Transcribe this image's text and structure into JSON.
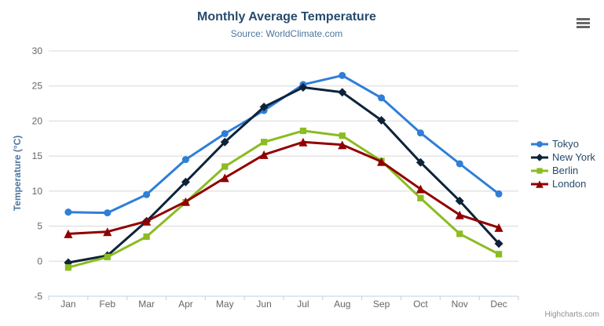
{
  "chart": {
    "title": "Monthly Average Temperature",
    "subtitle": "Source: WorldClimate.com",
    "y_axis_title": "Temperature (°C)",
    "credit": "Highcharts.com"
  },
  "chart_data": {
    "type": "line",
    "title": "Monthly Average Temperature",
    "subtitle": "Source: WorldClimate.com",
    "xlabel": "",
    "ylabel": "Temperature (°C)",
    "ylim": [
      -5,
      30
    ],
    "y_ticks": [
      -5,
      0,
      5,
      10,
      15,
      20,
      25,
      30
    ],
    "grid": true,
    "legend_position": "right",
    "categories": [
      "Jan",
      "Feb",
      "Mar",
      "Apr",
      "May",
      "Jun",
      "Jul",
      "Aug",
      "Sep",
      "Oct",
      "Nov",
      "Dec"
    ],
    "series": [
      {
        "name": "Tokyo",
        "color": "#2f7ed8",
        "marker": "circle",
        "values": [
          7.0,
          6.9,
          9.5,
          14.5,
          18.2,
          21.5,
          25.2,
          26.5,
          23.3,
          18.3,
          13.9,
          9.6
        ]
      },
      {
        "name": "New York",
        "color": "#0d233a",
        "marker": "diamond",
        "values": [
          -0.2,
          0.8,
          5.7,
          11.3,
          17.0,
          22.0,
          24.8,
          24.1,
          20.1,
          14.1,
          8.6,
          2.5
        ]
      },
      {
        "name": "Berlin",
        "color": "#8bbc21",
        "marker": "square",
        "values": [
          -0.9,
          0.6,
          3.5,
          8.4,
          13.5,
          17.0,
          18.6,
          17.9,
          14.3,
          9.0,
          3.9,
          1.0
        ]
      },
      {
        "name": "London",
        "color": "#910000",
        "marker": "triangle",
        "values": [
          3.9,
          4.2,
          5.7,
          8.5,
          11.9,
          15.2,
          17.0,
          16.6,
          14.2,
          10.3,
          6.6,
          4.8
        ]
      }
    ],
    "colors": {
      "grid_line": "#d8d8d8",
      "axis_line": "#c0d0e0",
      "axis_label": "#666666",
      "title": "#274b6d",
      "subtitle": "#4d759e",
      "axis_title": "#4d759e",
      "legend_text": "#274b6d",
      "credit_text": "#909090"
    }
  }
}
